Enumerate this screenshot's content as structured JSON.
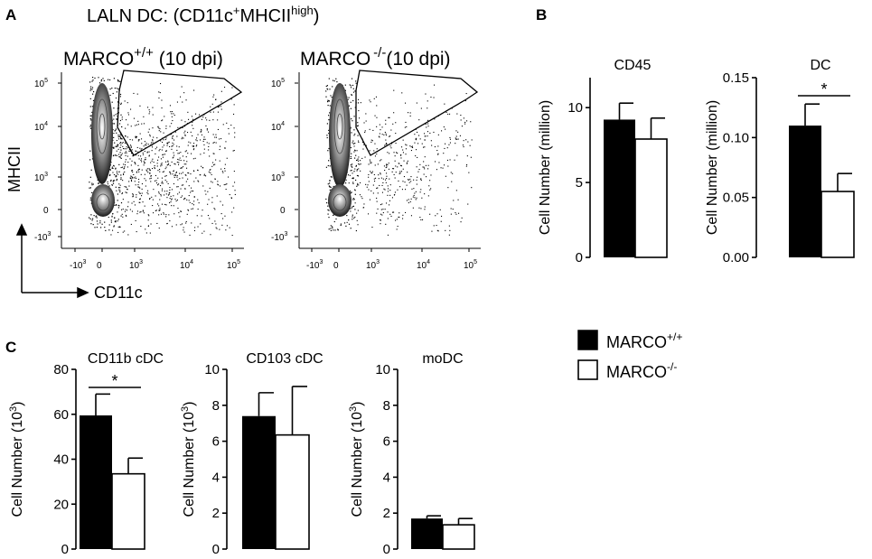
{
  "panel_labels": {
    "a": "A",
    "b": "B",
    "c": "C"
  },
  "flow": {
    "title": "LALN DC: (CD11c",
    "title_sup1": "+",
    "title_mid": "MHCII",
    "title_sup2": "high",
    "title_end": ")",
    "x_axis_label": "CD11c",
    "y_axis_label": "MHCII",
    "plots": [
      {
        "label": "MARCO",
        "sup": "+/+",
        "suffix": " (10 dpi)"
      },
      {
        "label": "MARCO",
        "sup": "-/-",
        "suffix": "(10 dpi)"
      }
    ],
    "x_ticks": [
      {
        "base": "-10",
        "exp": "3"
      },
      {
        "base": "0",
        "exp": ""
      },
      {
        "base": "10",
        "exp": "3"
      },
      {
        "base": "10",
        "exp": "4"
      },
      {
        "base": "10",
        "exp": "5"
      }
    ],
    "y_ticks": [
      {
        "base": "10",
        "exp": "5"
      },
      {
        "base": "10",
        "exp": "4"
      },
      {
        "base": "10",
        "exp": "3"
      },
      {
        "base": "0",
        "exp": ""
      },
      {
        "base": "-10",
        "exp": "3"
      }
    ]
  },
  "legend": {
    "items": [
      {
        "label": "MARCO",
        "sup": "+/+",
        "color": "#000000"
      },
      {
        "label": "MARCO",
        "sup": "-/-",
        "color": "#ffffff"
      }
    ]
  },
  "chart_data": [
    {
      "id": "cd45",
      "type": "bar",
      "title": "CD45",
      "ylabel": "Cell Number  (million)",
      "ylabel_sup": "",
      "ylabel_end": "",
      "ylim": [
        0,
        12
      ],
      "yticks": [
        "0",
        "5",
        "10"
      ],
      "ytick_values": [
        0,
        5,
        10
      ],
      "series": [
        {
          "name": "MARCO+/+",
          "value": 9.2,
          "error": 1.1
        },
        {
          "name": "MARCO-/-",
          "value": 7.9,
          "error": 1.4
        }
      ],
      "significance": null
    },
    {
      "id": "dc",
      "type": "bar",
      "title": "DC",
      "ylabel": "Cell Number  (million)",
      "ylabel_sup": "",
      "ylabel_end": "",
      "ylim": [
        0,
        0.15
      ],
      "yticks": [
        "0.00",
        "0.05",
        "0.10",
        "0.15"
      ],
      "ytick_values": [
        0,
        0.05,
        0.1,
        0.15
      ],
      "series": [
        {
          "name": "MARCO+/+",
          "value": 0.11,
          "error": 0.018
        },
        {
          "name": "MARCO-/-",
          "value": 0.055,
          "error": 0.015
        }
      ],
      "significance": "*"
    },
    {
      "id": "cd11b",
      "type": "bar",
      "title": "CD11b cDC",
      "ylabel": "Cell Number (10",
      "ylabel_sup": "3",
      "ylabel_end": ")",
      "ylim": [
        0,
        80
      ],
      "yticks": [
        "0",
        "20",
        "40",
        "60",
        "80"
      ],
      "ytick_values": [
        0,
        20,
        40,
        60,
        80
      ],
      "series": [
        {
          "name": "MARCO+/+",
          "value": 59.5,
          "error": 9.5
        },
        {
          "name": "MARCO-/-",
          "value": 33.5,
          "error": 7
        }
      ],
      "significance": "*"
    },
    {
      "id": "cd103",
      "type": "bar",
      "title": "CD103 cDC",
      "ylabel": "Cell Number (10",
      "ylabel_sup": "3",
      "ylabel_end": ")",
      "ylim": [
        0,
        10
      ],
      "yticks": [
        "0",
        "2",
        "4",
        "6",
        "8",
        "10"
      ],
      "ytick_values": [
        0,
        2,
        4,
        6,
        8,
        10
      ],
      "series": [
        {
          "name": "MARCO+/+",
          "value": 7.4,
          "error": 1.3
        },
        {
          "name": "MARCO-/-",
          "value": 6.35,
          "error": 2.7
        }
      ],
      "significance": null
    },
    {
      "id": "modc",
      "type": "bar",
      "title": "moDC",
      "ylabel": "Cell Number (10",
      "ylabel_sup": "3",
      "ylabel_end": ")",
      "ylim": [
        0,
        10
      ],
      "yticks": [
        "0",
        "2",
        "4",
        "6",
        "8",
        "10"
      ],
      "ytick_values": [
        0,
        2,
        4,
        6,
        8,
        10
      ],
      "series": [
        {
          "name": "MARCO+/+",
          "value": 1.7,
          "error": 0.15
        },
        {
          "name": "MARCO-/-",
          "value": 1.35,
          "error": 0.35
        }
      ],
      "significance": null
    }
  ]
}
